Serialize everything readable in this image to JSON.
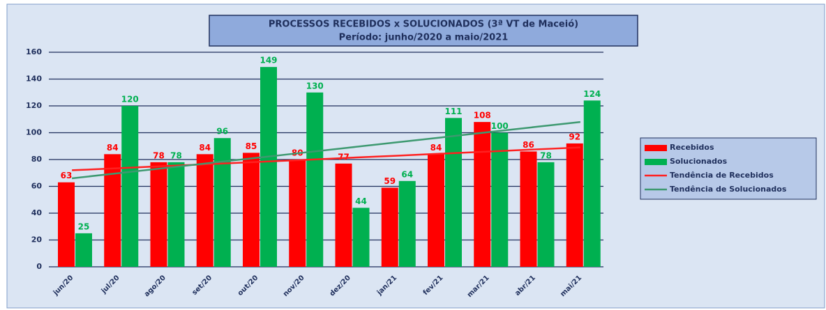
{
  "chart_data": {
    "type": "bar",
    "title": "PROCESSOS RECEBIDOS x SOLUCIONADOS (3ª VT de Maceió)",
    "subtitle": "Período: junho/2020 a maio/2021",
    "categories": [
      "jun/20",
      "jul/20",
      "ago/20",
      "set/20",
      "out/20",
      "nov/20",
      "dez/20",
      "jan/21",
      "fev/21",
      "mar/21",
      "abr/21",
      "mai/21"
    ],
    "series": [
      {
        "name": "Recebidos",
        "color": "#ff0000",
        "values": [
          63,
          84,
          78,
          84,
          85,
          80,
          77,
          59,
          84,
          108,
          86,
          92
        ]
      },
      {
        "name": "Solucionados",
        "color": "#00b050",
        "values": [
          25,
          120,
          78,
          96,
          149,
          130,
          44,
          64,
          111,
          100,
          78,
          124
        ]
      }
    ],
    "trend_series": [
      {
        "name": "Tendência de Recebidos",
        "color": "#ff2020",
        "values": [
          72,
          73.5,
          75.1,
          76.6,
          78.2,
          79.7,
          81.3,
          82.8,
          84.4,
          85.9,
          87.5,
          89
        ]
      },
      {
        "name": "Tendência de Solucionados",
        "color": "#3d9970",
        "values": [
          66,
          69.8,
          73.6,
          77.5,
          81.3,
          85.1,
          88.9,
          92.7,
          96.5,
          100.4,
          104.2,
          108
        ]
      }
    ],
    "ylim": [
      0,
      160
    ],
    "yticks": [
      0,
      20,
      40,
      60,
      80,
      100,
      120,
      140,
      160
    ],
    "grid": true,
    "legend": "right"
  }
}
